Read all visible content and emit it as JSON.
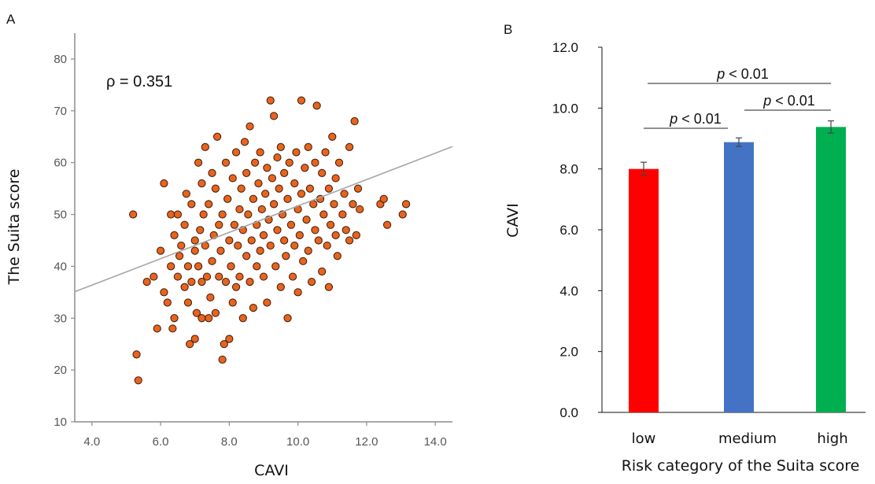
{
  "chart_data": [
    {
      "panel_label": "A",
      "type": "scatter",
      "xlabel": "CAVI",
      "ylabel": "The Suita score",
      "xlim": [
        3.5,
        14.5
      ],
      "ylim": [
        10,
        85
      ],
      "xticks": [
        "4.0",
        "6.0",
        "8.0",
        "10.0",
        "12.0",
        "14.0"
      ],
      "yticks": [
        "10",
        "20",
        "30",
        "40",
        "50",
        "60",
        "70",
        "80"
      ],
      "annotation": "ρ = 0.351",
      "marker_color": "#E8641E",
      "marker_edge_color": "#3a1a08",
      "fit_line": {
        "x": [
          3.5,
          14.5
        ],
        "y": [
          35.1,
          63.1
        ],
        "color": "#a6a6a6"
      },
      "points": [
        [
          5.2,
          50
        ],
        [
          5.3,
          23
        ],
        [
          5.35,
          18
        ],
        [
          5.6,
          37
        ],
        [
          5.8,
          38
        ],
        [
          5.9,
          28
        ],
        [
          6.0,
          43
        ],
        [
          6.1,
          35
        ],
        [
          6.1,
          56
        ],
        [
          6.2,
          33
        ],
        [
          6.3,
          40
        ],
        [
          6.3,
          50
        ],
        [
          6.35,
          28
        ],
        [
          6.4,
          46
        ],
        [
          6.4,
          30
        ],
        [
          6.5,
          38
        ],
        [
          6.5,
          50
        ],
        [
          6.55,
          42
        ],
        [
          6.6,
          44
        ],
        [
          6.7,
          36
        ],
        [
          6.7,
          48
        ],
        [
          6.75,
          54
        ],
        [
          6.8,
          40
        ],
        [
          6.8,
          33
        ],
        [
          6.85,
          25
        ],
        [
          6.9,
          37
        ],
        [
          6.9,
          52
        ],
        [
          7.0,
          45
        ],
        [
          7.0,
          43
        ],
        [
          7.0,
          26
        ],
        [
          7.05,
          31
        ],
        [
          7.1,
          40
        ],
        [
          7.1,
          60
        ],
        [
          7.15,
          47
        ],
        [
          7.2,
          30
        ],
        [
          7.2,
          37
        ],
        [
          7.2,
          56
        ],
        [
          7.25,
          50
        ],
        [
          7.3,
          63
        ],
        [
          7.3,
          44
        ],
        [
          7.35,
          38
        ],
        [
          7.4,
          30
        ],
        [
          7.4,
          52
        ],
        [
          7.45,
          34
        ],
        [
          7.5,
          58
        ],
        [
          7.5,
          41
        ],
        [
          7.55,
          46
        ],
        [
          7.6,
          31
        ],
        [
          7.6,
          55
        ],
        [
          7.65,
          65
        ],
        [
          7.7,
          38
        ],
        [
          7.7,
          48
        ],
        [
          7.75,
          43
        ],
        [
          7.8,
          50
        ],
        [
          7.8,
          22
        ],
        [
          7.85,
          25
        ],
        [
          7.9,
          37
        ],
        [
          7.9,
          60
        ],
        [
          7.95,
          53
        ],
        [
          8.0,
          45
        ],
        [
          8.0,
          26
        ],
        [
          8.05,
          40
        ],
        [
          8.1,
          57
        ],
        [
          8.1,
          33
        ],
        [
          8.15,
          48
        ],
        [
          8.2,
          62
        ],
        [
          8.2,
          36
        ],
        [
          8.25,
          44
        ],
        [
          8.3,
          51
        ],
        [
          8.3,
          38
        ],
        [
          8.35,
          55
        ],
        [
          8.4,
          47
        ],
        [
          8.4,
          30
        ],
        [
          8.45,
          64
        ],
        [
          8.5,
          42
        ],
        [
          8.5,
          58
        ],
        [
          8.55,
          50
        ],
        [
          8.6,
          37
        ],
        [
          8.6,
          67
        ],
        [
          8.65,
          45
        ],
        [
          8.7,
          53
        ],
        [
          8.7,
          32
        ],
        [
          8.75,
          60
        ],
        [
          8.8,
          48
        ],
        [
          8.8,
          40
        ],
        [
          8.85,
          56
        ],
        [
          8.9,
          43
        ],
        [
          8.9,
          62
        ],
        [
          8.95,
          51
        ],
        [
          9.0,
          38
        ],
        [
          9.0,
          46
        ],
        [
          9.05,
          54
        ],
        [
          9.1,
          59
        ],
        [
          9.1,
          33
        ],
        [
          9.15,
          49
        ],
        [
          9.2,
          72
        ],
        [
          9.2,
          44
        ],
        [
          9.25,
          57
        ],
        [
          9.3,
          69
        ],
        [
          9.3,
          52
        ],
        [
          9.35,
          40
        ],
        [
          9.4,
          61
        ],
        [
          9.4,
          47
        ],
        [
          9.45,
          55
        ],
        [
          9.5,
          36
        ],
        [
          9.5,
          63
        ],
        [
          9.55,
          50
        ],
        [
          9.6,
          45
        ],
        [
          9.6,
          58
        ],
        [
          9.65,
          42
        ],
        [
          9.7,
          53
        ],
        [
          9.7,
          30
        ],
        [
          9.75,
          60
        ],
        [
          9.8,
          48
        ],
        [
          9.85,
          38
        ],
        [
          9.9,
          56
        ],
        [
          9.9,
          44
        ],
        [
          9.95,
          62
        ],
        [
          10.0,
          51
        ],
        [
          10.0,
          35
        ],
        [
          10.05,
          46
        ],
        [
          10.1,
          72
        ],
        [
          10.1,
          54
        ],
        [
          10.15,
          41
        ],
        [
          10.2,
          59
        ],
        [
          10.25,
          49
        ],
        [
          10.3,
          63
        ],
        [
          10.3,
          43
        ],
        [
          10.35,
          55
        ],
        [
          10.4,
          37
        ],
        [
          10.45,
          52
        ],
        [
          10.5,
          47
        ],
        [
          10.5,
          60
        ],
        [
          10.55,
          71
        ],
        [
          10.6,
          45
        ],
        [
          10.65,
          53
        ],
        [
          10.7,
          39
        ],
        [
          10.7,
          58
        ],
        [
          10.75,
          50
        ],
        [
          10.8,
          62
        ],
        [
          10.85,
          44
        ],
        [
          10.9,
          55
        ],
        [
          10.9,
          36
        ],
        [
          10.95,
          48
        ],
        [
          11.0,
          65
        ],
        [
          11.05,
          52
        ],
        [
          11.1,
          46
        ],
        [
          11.1,
          57
        ],
        [
          11.15,
          42
        ],
        [
          11.2,
          60
        ],
        [
          11.3,
          50
        ],
        [
          11.35,
          54
        ],
        [
          11.4,
          47
        ],
        [
          11.5,
          63
        ],
        [
          11.5,
          45
        ],
        [
          11.6,
          52
        ],
        [
          11.65,
          68
        ],
        [
          11.7,
          46
        ],
        [
          11.75,
          55
        ],
        [
          11.8,
          51
        ],
        [
          12.4,
          52
        ],
        [
          12.5,
          53
        ],
        [
          12.6,
          48
        ],
        [
          13.05,
          50
        ],
        [
          13.15,
          52
        ]
      ]
    },
    {
      "panel_label": "B",
      "type": "bar",
      "xlabel": "Risk category of the Suita score",
      "ylabel": "CAVI",
      "ylim": [
        0,
        12
      ],
      "yticks": [
        "0.0",
        "2.0",
        "4.0",
        "6.0",
        "8.0",
        "10.0",
        "12.0"
      ],
      "categories": [
        "low",
        "medium",
        "high"
      ],
      "values": [
        8.0,
        8.88,
        9.38
      ],
      "errors": [
        0.22,
        0.14,
        0.2
      ],
      "colors": [
        "#FF0000",
        "#4472C4",
        "#00B050"
      ],
      "significance": [
        {
          "between": [
            0,
            1
          ],
          "label_p": "p",
          "label_rest": " < 0.01"
        },
        {
          "between": [
            1,
            2
          ],
          "label_p": "p",
          "label_rest": " < 0.01"
        },
        {
          "between": [
            0,
            2
          ],
          "label_p": "p",
          "label_rest": " < 0.01"
        }
      ]
    }
  ]
}
